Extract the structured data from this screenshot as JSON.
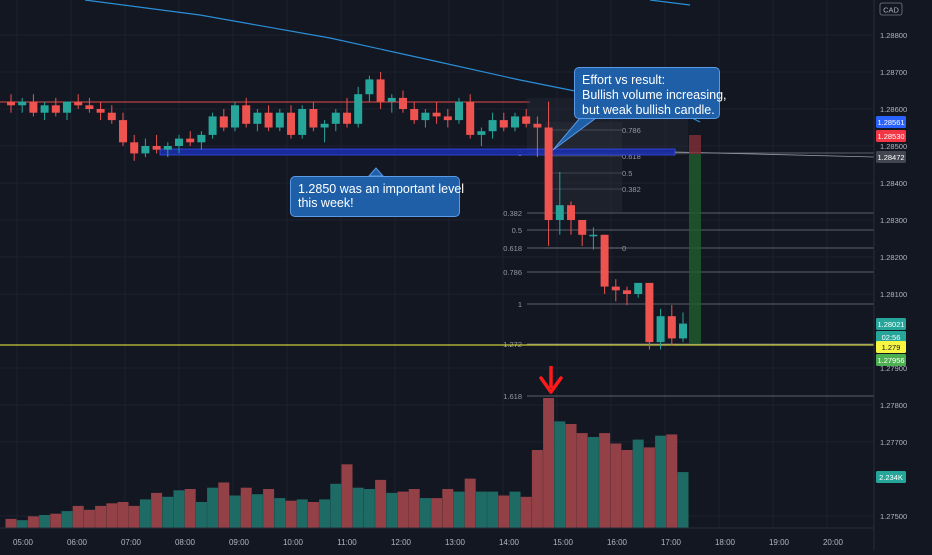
{
  "chart_data": {
    "type": "candlestick",
    "symbol_currency": "CAD",
    "x_ticks": [
      "05:00",
      "06:00",
      "07:00",
      "08:00",
      "09:00",
      "10:00",
      "11:00",
      "12:00",
      "13:00",
      "14:00",
      "15:00",
      "16:00",
      "17:00",
      "18:00",
      "19:00",
      "20:00"
    ],
    "y_ticks": [
      "1.28800",
      "1.28700",
      "1.28600",
      "1.28500",
      "1.28400",
      "1.28300",
      "1.28200",
      "1.28100",
      "1.27900",
      "1.27800",
      "1.27700",
      "1.27500"
    ],
    "price_badges": [
      {
        "value": "1.28561",
        "color": "#2962ff"
      },
      {
        "value": "1.28530",
        "color": "#f23645"
      },
      {
        "value": "1.28472",
        "color": "#434651"
      },
      {
        "value": "1.28021",
        "color": "#26a69a"
      },
      {
        "value": "02:56",
        "color": "#26a69a"
      },
      {
        "value": "1.279",
        "color": "#f5f542"
      },
      {
        "value": "1.27956",
        "color": "#4caf50"
      },
      {
        "value": "2.234K",
        "color": "#26a69a"
      }
    ],
    "fib_levels_right": [
      "0",
      "0.382",
      "0.5",
      "0.618",
      "0.786",
      "1",
      "1.272",
      "1.618"
    ],
    "fib_levels_small": [
      "0.786",
      "0.618",
      "0.5",
      "0.382",
      "0"
    ],
    "candles": [
      {
        "o": 1.2862,
        "h": 1.2864,
        "l": 1.2859,
        "c": 1.2861
      },
      {
        "o": 1.2861,
        "h": 1.2863,
        "l": 1.2859,
        "c": 1.2862
      },
      {
        "o": 1.2862,
        "h": 1.2864,
        "l": 1.2858,
        "c": 1.2859
      },
      {
        "o": 1.2859,
        "h": 1.2862,
        "l": 1.2857,
        "c": 1.2861
      },
      {
        "o": 1.2861,
        "h": 1.2863,
        "l": 1.2858,
        "c": 1.2859
      },
      {
        "o": 1.2859,
        "h": 1.2862,
        "l": 1.2857,
        "c": 1.2862
      },
      {
        "o": 1.2862,
        "h": 1.2864,
        "l": 1.286,
        "c": 1.2861
      },
      {
        "o": 1.2861,
        "h": 1.2863,
        "l": 1.2859,
        "c": 1.286
      },
      {
        "o": 1.286,
        "h": 1.2862,
        "l": 1.2857,
        "c": 1.2859
      },
      {
        "o": 1.2859,
        "h": 1.2861,
        "l": 1.2856,
        "c": 1.2857
      },
      {
        "o": 1.2857,
        "h": 1.2859,
        "l": 1.285,
        "c": 1.2851
      },
      {
        "o": 1.2851,
        "h": 1.2853,
        "l": 1.2846,
        "c": 1.2848
      },
      {
        "o": 1.2848,
        "h": 1.2852,
        "l": 1.2847,
        "c": 1.285
      },
      {
        "o": 1.285,
        "h": 1.2853,
        "l": 1.2848,
        "c": 1.2849
      },
      {
        "o": 1.2849,
        "h": 1.2851,
        "l": 1.2847,
        "c": 1.285
      },
      {
        "o": 1.285,
        "h": 1.2853,
        "l": 1.2848,
        "c": 1.2852
      },
      {
        "o": 1.2852,
        "h": 1.2854,
        "l": 1.285,
        "c": 1.2851
      },
      {
        "o": 1.2851,
        "h": 1.2854,
        "l": 1.2849,
        "c": 1.2853
      },
      {
        "o": 1.2853,
        "h": 1.2859,
        "l": 1.2852,
        "c": 1.2858
      },
      {
        "o": 1.2858,
        "h": 1.286,
        "l": 1.2854,
        "c": 1.2855
      },
      {
        "o": 1.2855,
        "h": 1.2862,
        "l": 1.2854,
        "c": 1.2861
      },
      {
        "o": 1.2861,
        "h": 1.2863,
        "l": 1.2855,
        "c": 1.2856
      },
      {
        "o": 1.2856,
        "h": 1.286,
        "l": 1.2854,
        "c": 1.2859
      },
      {
        "o": 1.2859,
        "h": 1.2861,
        "l": 1.2854,
        "c": 1.2855
      },
      {
        "o": 1.2855,
        "h": 1.286,
        "l": 1.2854,
        "c": 1.2859
      },
      {
        "o": 1.2859,
        "h": 1.2861,
        "l": 1.2852,
        "c": 1.2853
      },
      {
        "o": 1.2853,
        "h": 1.2861,
        "l": 1.2852,
        "c": 1.286
      },
      {
        "o": 1.286,
        "h": 1.2862,
        "l": 1.2854,
        "c": 1.2855
      },
      {
        "o": 1.2855,
        "h": 1.2857,
        "l": 1.2851,
        "c": 1.2856
      },
      {
        "o": 1.2856,
        "h": 1.286,
        "l": 1.2854,
        "c": 1.2859
      },
      {
        "o": 1.2859,
        "h": 1.2863,
        "l": 1.2855,
        "c": 1.2856
      },
      {
        "o": 1.2856,
        "h": 1.2866,
        "l": 1.2855,
        "c": 1.2864
      },
      {
        "o": 1.2864,
        "h": 1.2869,
        "l": 1.2862,
        "c": 1.2868
      },
      {
        "o": 1.2868,
        "h": 1.287,
        "l": 1.286,
        "c": 1.2862
      },
      {
        "o": 1.2862,
        "h": 1.2864,
        "l": 1.2859,
        "c": 1.2863
      },
      {
        "o": 1.2863,
        "h": 1.2865,
        "l": 1.2859,
        "c": 1.286
      },
      {
        "o": 1.286,
        "h": 1.2862,
        "l": 1.2856,
        "c": 1.2857
      },
      {
        "o": 1.2857,
        "h": 1.286,
        "l": 1.2855,
        "c": 1.2859
      },
      {
        "o": 1.2859,
        "h": 1.2862,
        "l": 1.2856,
        "c": 1.2858
      },
      {
        "o": 1.2858,
        "h": 1.286,
        "l": 1.2855,
        "c": 1.2857
      },
      {
        "o": 1.2857,
        "h": 1.2863,
        "l": 1.2856,
        "c": 1.2862
      },
      {
        "o": 1.2862,
        "h": 1.2864,
        "l": 1.2852,
        "c": 1.2853
      },
      {
        "o": 1.2853,
        "h": 1.2855,
        "l": 1.285,
        "c": 1.2854
      },
      {
        "o": 1.2854,
        "h": 1.2859,
        "l": 1.2852,
        "c": 1.2857
      },
      {
        "o": 1.2857,
        "h": 1.2859,
        "l": 1.2854,
        "c": 1.2855
      },
      {
        "o": 1.2855,
        "h": 1.2859,
        "l": 1.2854,
        "c": 1.2858
      },
      {
        "o": 1.2858,
        "h": 1.286,
        "l": 1.2855,
        "c": 1.2856
      },
      {
        "o": 1.2856,
        "h": 1.2858,
        "l": 1.2847,
        "c": 1.2855
      },
      {
        "o": 1.2855,
        "h": 1.2862,
        "l": 1.2823,
        "c": 1.283
      },
      {
        "o": 1.283,
        "h": 1.2843,
        "l": 1.2826,
        "c": 1.2834
      },
      {
        "o": 1.2834,
        "h": 1.2835,
        "l": 1.2826,
        "c": 1.283
      },
      {
        "o": 1.283,
        "h": 1.283,
        "l": 1.2823,
        "c": 1.2826
      },
      {
        "o": 1.2826,
        "h": 1.2828,
        "l": 1.2822,
        "c": 1.2826
      },
      {
        "o": 1.2826,
        "h": 1.2826,
        "l": 1.281,
        "c": 1.2812
      },
      {
        "o": 1.2812,
        "h": 1.2814,
        "l": 1.2808,
        "c": 1.2811
      },
      {
        "o": 1.2811,
        "h": 1.2812,
        "l": 1.2807,
        "c": 1.281
      },
      {
        "o": 1.281,
        "h": 1.2813,
        "l": 1.2809,
        "c": 1.2813
      },
      {
        "o": 1.2813,
        "h": 1.2813,
        "l": 1.2795,
        "c": 1.2797
      },
      {
        "o": 1.2797,
        "h": 1.2806,
        "l": 1.2795,
        "c": 1.2804
      },
      {
        "o": 1.2804,
        "h": 1.2807,
        "l": 1.2796,
        "c": 1.2798
      },
      {
        "o": 1.2798,
        "h": 1.2805,
        "l": 1.2797,
        "c": 1.2802
      }
    ],
    "volumes": [
      7,
      6,
      9,
      10,
      11,
      13,
      17,
      14,
      17,
      19,
      20,
      17,
      22,
      27,
      24,
      29,
      30,
      20,
      31,
      35,
      25,
      31,
      26,
      30,
      23,
      21,
      22,
      20,
      22,
      34,
      49,
      31,
      30,
      37,
      27,
      28,
      30,
      23,
      23,
      30,
      28,
      38,
      28,
      28,
      25,
      28,
      24,
      60,
      100,
      82,
      80,
      73,
      70,
      73,
      65,
      60,
      68,
      62,
      71,
      72,
      43
    ]
  },
  "annotations": {
    "callout_level": [
      "1.2850 was an important level",
      "this week!"
    ],
    "callout_effort": [
      "Effort vs result:",
      "Bullish volume increasing,",
      "but weak bullish candle."
    ]
  },
  "colors": {
    "background": "#131722",
    "bull": "#26a69a",
    "bear": "#ef5350",
    "vol_bull": "#1e6b66",
    "vol_bear": "#934046",
    "grid": "#1e222d",
    "text": "#b2b5be",
    "callout_fill": "#1e5fa8",
    "callout_border": "#5b9ae6",
    "arrow": "#ff1a1a",
    "zone": "#1a2ea8",
    "yellow_line": "#f5f542",
    "ma": "#2a8fd8"
  }
}
